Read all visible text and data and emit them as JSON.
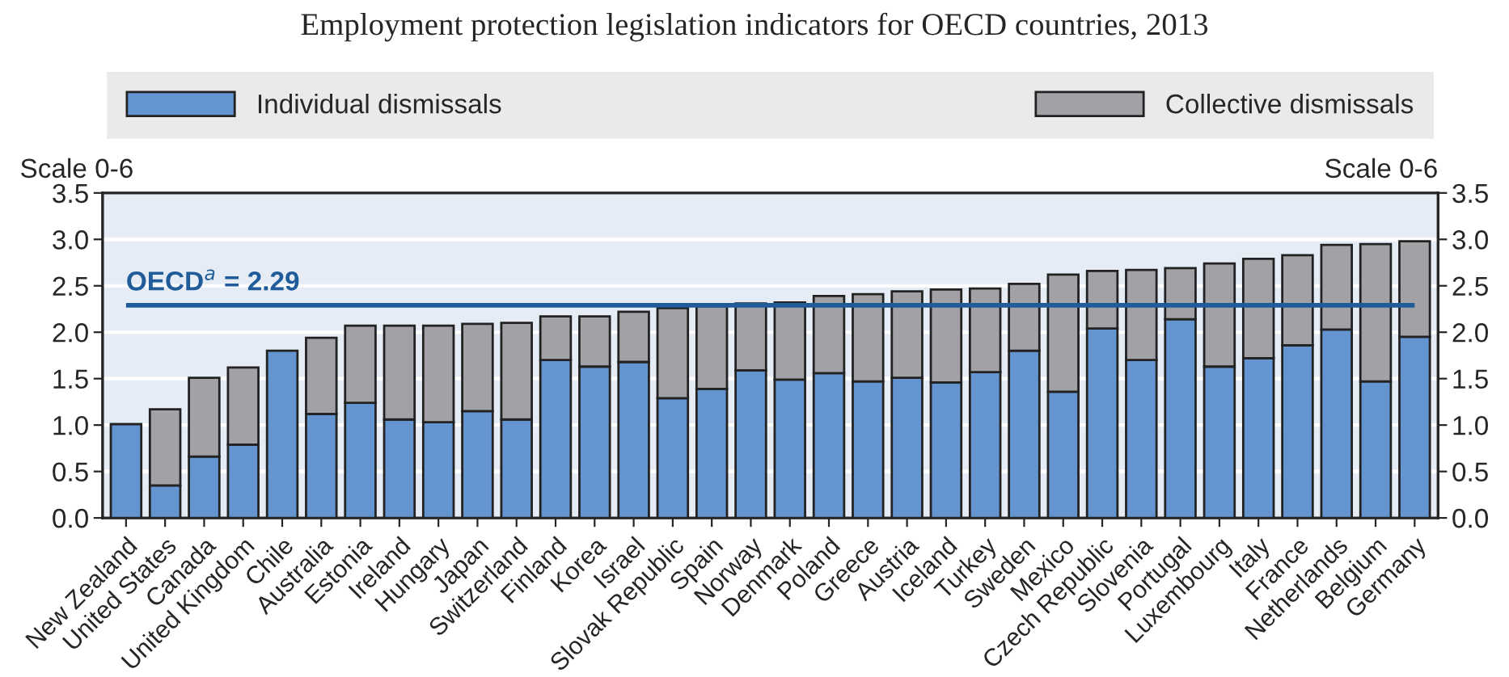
{
  "chart_data": {
    "type": "bar",
    "stacked": true,
    "title": "Employment protection legislation indicators for OECD countries, 2013",
    "ylabel": "Scale 0-6",
    "y2label": "Scale 0-6",
    "categories": [
      "New Zealand",
      "United States",
      "Canada",
      "United Kingdom",
      "Chile",
      "Australia",
      "Estonia",
      "Ireland",
      "Hungary",
      "Japan",
      "Switzerland",
      "Finland",
      "Korea",
      "Israel",
      "Slovak Republic",
      "Spain",
      "Norway",
      "Denmark",
      "Poland",
      "Greece",
      "Austria",
      "Iceland",
      "Turkey",
      "Sweden",
      "Mexico",
      "Czech Republic",
      "Slovenia",
      "Portugal",
      "Luxembourg",
      "Italy",
      "France",
      "Netherlands",
      "Belgium",
      "Germany"
    ],
    "series": [
      {
        "name": "Individual dismissals",
        "color": "#6495d0",
        "values": [
          1.01,
          0.35,
          0.66,
          0.79,
          1.8,
          1.12,
          1.24,
          1.06,
          1.03,
          1.15,
          1.06,
          1.7,
          1.63,
          1.68,
          1.29,
          1.39,
          1.59,
          1.49,
          1.56,
          1.47,
          1.51,
          1.46,
          1.57,
          1.8,
          1.36,
          2.04,
          1.7,
          2.14,
          1.63,
          1.72,
          1.86,
          2.03,
          1.47,
          1.95
        ]
      },
      {
        "name": "Collective dismissals",
        "color": "#a2a2a6",
        "values": [
          null,
          0.82,
          0.85,
          0.83,
          null,
          0.82,
          0.83,
          1.01,
          1.04,
          0.94,
          1.04,
          0.47,
          0.54,
          0.54,
          0.97,
          0.89,
          0.72,
          0.83,
          0.83,
          0.94,
          0.93,
          1.0,
          0.9,
          0.72,
          1.26,
          0.62,
          0.97,
          0.55,
          1.11,
          1.07,
          0.97,
          0.91,
          1.48,
          1.03
        ]
      }
    ],
    "ylim": [
      0,
      3.5
    ],
    "yticks": [
      {
        "value": 0,
        "label": "0.0"
      },
      {
        "value": 0.5,
        "label": "0.5"
      },
      {
        "value": 1,
        "label": "1.0"
      },
      {
        "value": 1.5,
        "label": "1.5"
      },
      {
        "value": 2,
        "label": "2.0"
      },
      {
        "value": 2.5,
        "label": "2.5"
      },
      {
        "value": 3,
        "label": "3.0"
      },
      {
        "value": 3.5,
        "label": "3.5"
      }
    ],
    "y2lim": [
      0,
      3.5
    ],
    "y2ticks": [
      {
        "value": 0,
        "label": "0.0"
      },
      {
        "value": 0.5,
        "label": "0.5"
      },
      {
        "value": 1,
        "label": "1.0"
      },
      {
        "value": 1.5,
        "label": "1.5"
      },
      {
        "value": 2,
        "label": "2.0"
      },
      {
        "value": 2.5,
        "label": "2.5"
      },
      {
        "value": 3,
        "label": "3.0"
      },
      {
        "value": 3.5,
        "label": "3.5"
      }
    ],
    "ref_lines": [
      {
        "axis": "y",
        "value": 2.29,
        "label": "OECD$^{a}$ = 2.29",
        "color": "#1f5c99"
      }
    ],
    "grid": true,
    "legend": "top"
  }
}
